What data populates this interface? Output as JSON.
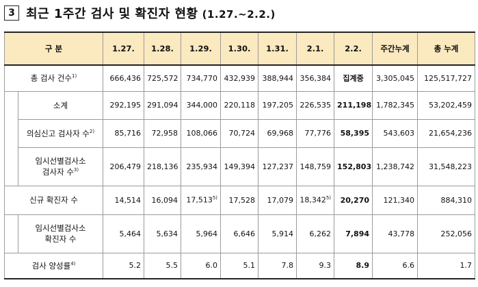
{
  "title": {
    "box": "3",
    "main": "최근 1주간 검사 및 확진자 현황",
    "sub": "(1.27.~2.2.)"
  },
  "headers": [
    "구 분",
    "1.27.",
    "1.28.",
    "1.29.",
    "1.30.",
    "1.31.",
    "2.1.",
    "2.2.",
    "주간누계",
    "총 누계"
  ],
  "rows": [
    {
      "label": "총 검사 건수",
      "sup": "1)",
      "values": [
        "666,436",
        "725,572",
        "734,770",
        "432,939",
        "388,944",
        "356,384",
        "집계중",
        "3,305,045",
        "125,517,727"
      ]
    },
    {
      "label": "소계",
      "sup": "",
      "values": [
        "292,195",
        "291,094",
        "344,000",
        "220,118",
        "197,205",
        "226,535",
        "211,198",
        "1,782,345",
        "53,202,459"
      ]
    },
    {
      "label": "의심신고 검사자 수",
      "sup": "2)",
      "values": [
        "85,716",
        "72,958",
        "108,066",
        "70,724",
        "69,968",
        "77,776",
        "58,395",
        "543,603",
        "21,654,236"
      ]
    },
    {
      "label": "임시선별검사소 검사자 수",
      "label_line1": "임시선별검사소",
      "label_line2": "검사자 수",
      "sup": "3)",
      "values": [
        "206,479",
        "218,136",
        "235,934",
        "149,394",
        "127,237",
        "148,759",
        "152,803",
        "1,238,742",
        "31,548,223"
      ]
    },
    {
      "label": "신규 확진자 수",
      "sup": "",
      "values": [
        "14,514",
        "16,094",
        "17,513",
        "17,528",
        "17,079",
        "18,342",
        "20,270",
        "121,340",
        "884,310"
      ],
      "value_sups": [
        "",
        "",
        "5)",
        "",
        "",
        "5)",
        "",
        "",
        ""
      ]
    },
    {
      "label": "임시선별검사소 확진자 수",
      "label_line1": "임시선별검사소",
      "label_line2": "확진자 수",
      "sup": "",
      "values": [
        "5,464",
        "5,634",
        "5,964",
        "6,646",
        "5,914",
        "6,262",
        "7,894",
        "43,778",
        "252,056"
      ]
    },
    {
      "label": "검사 양성률",
      "sup": "4)",
      "values": [
        "5.2",
        "5.5",
        "6.0",
        "5.1",
        "7.8",
        "9.3",
        "8.9",
        "6.6",
        "1.7"
      ]
    }
  ],
  "colors": {
    "header_bg": "#fbe9bf",
    "border": "#9a9a9a"
  }
}
